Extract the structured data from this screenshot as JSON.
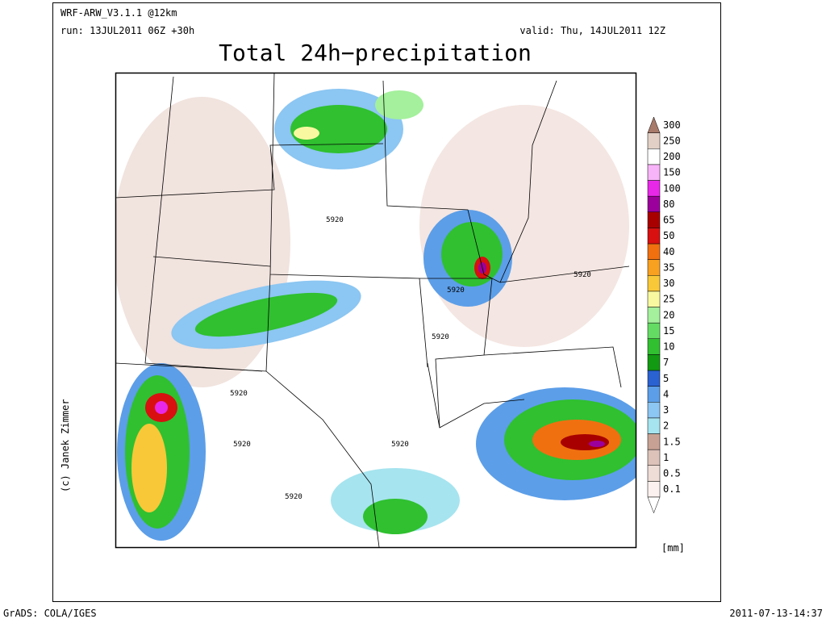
{
  "header": {
    "model": "WRF-ARW_V3.1.1 @12km",
    "run": "run: 13JUL2011 06Z +30h",
    "valid": "valid: Thu, 14JUL2011 12Z",
    "title": "Total 24h−precipitation"
  },
  "map": {
    "contour_labels": [
      "5920",
      "5920",
      "5920",
      "5920",
      "5920",
      "5920",
      "5920",
      "5920"
    ],
    "copyright": "(c) Janek Zimmer"
  },
  "colorbar": {
    "unit": "[mm]",
    "below_color": "#ffffff",
    "levels": [
      0.1,
      0.5,
      1,
      1.5,
      2,
      3,
      4,
      5,
      7,
      10,
      15,
      20,
      25,
      30,
      35,
      40,
      50,
      65,
      80,
      100,
      150,
      200,
      250,
      300
    ],
    "colors": [
      "#fbf1ee",
      "#eedcd6",
      "#dcc2b9",
      "#c7a294",
      "#a6e4ef",
      "#8cc6f2",
      "#5c9ee8",
      "#2a62d2",
      "#129a12",
      "#30c030",
      "#64dc64",
      "#a4f09c",
      "#f8f8a0",
      "#f8c838",
      "#f8a020",
      "#f07010",
      "#d81010",
      "#a80000",
      "#9c009c",
      "#e828e8",
      "#f8b4f8",
      "#ffffff",
      "#e2d0c6",
      "#a87a6a"
    ]
  },
  "footer": {
    "left": "GrADS: COLA/IGES",
    "right": "2011-07-13-14:37"
  }
}
